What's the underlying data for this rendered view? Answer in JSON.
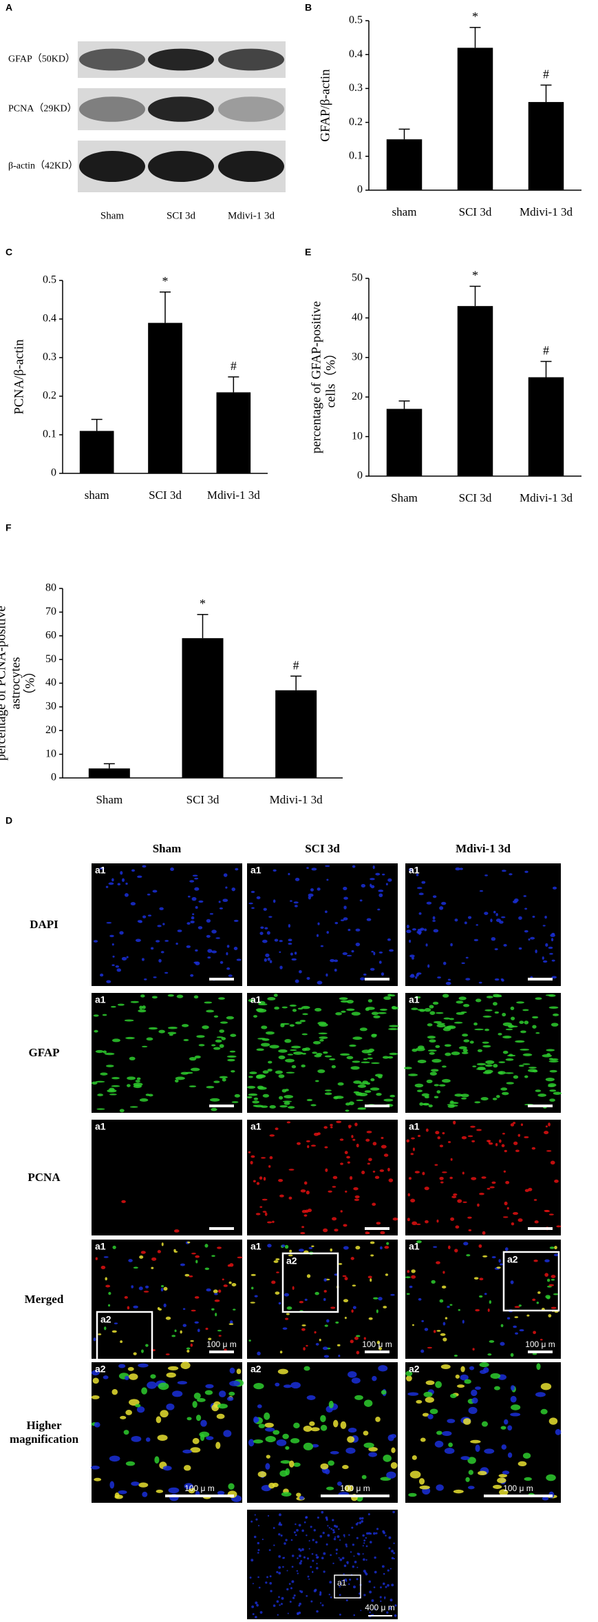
{
  "panel_labels": {
    "a": "A",
    "b": "B",
    "c": "C",
    "d": "D",
    "e": "E",
    "f": "F"
  },
  "blot": {
    "bands": [
      "GFAP（50KD）",
      "PCNA（29KD）",
      "β-actin（42KD）"
    ],
    "lanes": [
      "Sham",
      "SCI 3d",
      "Mdivi-1 3d"
    ]
  },
  "chart_data": [
    {
      "type": "bar",
      "ylabel": [
        "GFAP/β-actin"
      ],
      "categories": [
        "sham",
        "SCI 3d",
        "Mdivi-1 3d"
      ],
      "values": [
        0.15,
        0.42,
        0.26
      ],
      "errors": [
        0.03,
        0.06,
        0.05
      ],
      "annotations": [
        null,
        "*",
        "#"
      ],
      "color": "#000000",
      "ylim": [
        0,
        0.5
      ],
      "yticks": [
        0,
        0.1,
        0.2,
        0.3,
        0.4,
        0.5
      ]
    },
    {
      "type": "bar",
      "ylabel": [
        "PCNA/β-actin"
      ],
      "categories": [
        "sham",
        "SCI 3d",
        "Mdivi-1 3d"
      ],
      "values": [
        0.11,
        0.39,
        0.21
      ],
      "errors": [
        0.03,
        0.08,
        0.04
      ],
      "annotations": [
        null,
        "*",
        "#"
      ],
      "color": "#000000",
      "ylim": [
        0,
        0.5
      ],
      "yticks": [
        0,
        0.1,
        0.2,
        0.3,
        0.4,
        0.5
      ]
    },
    {
      "type": "bar",
      "ylabel": [
        "percentage of GFAP-positive",
        "cells（%）"
      ],
      "categories": [
        "Sham",
        "SCI 3d",
        "Mdivi-1 3d"
      ],
      "values": [
        17,
        43,
        25
      ],
      "errors": [
        2,
        5,
        4
      ],
      "annotations": [
        null,
        "*",
        "#"
      ],
      "color": "#000000",
      "ylim": [
        0,
        50
      ],
      "yticks": [
        0,
        10,
        20,
        30,
        40,
        50
      ]
    },
    {
      "type": "bar",
      "ylabel": [
        "percentage of PCNA-positive",
        "astrocytes",
        "（%）"
      ],
      "categories": [
        "Sham",
        "SCI 3d",
        "Mdivi-1 3d"
      ],
      "values": [
        4,
        59,
        37
      ],
      "errors": [
        2,
        10,
        6
      ],
      "annotations": [
        null,
        "*",
        "#"
      ],
      "color": "#000000",
      "ylim": [
        0,
        80
      ],
      "yticks": [
        0,
        10,
        20,
        30,
        40,
        50,
        60,
        70,
        80
      ]
    }
  ],
  "micrograph": {
    "columns": [
      "Sham",
      "SCI 3d",
      "Mdivi-1  3d"
    ],
    "rows": [
      "DAPI",
      "GFAP",
      "PCNA",
      "Merged",
      "Higher magnification"
    ],
    "region_tag": "a1",
    "zoom_tag": "a2",
    "scale_label": "100 μ m",
    "overview_scale_label": "400 μ m"
  }
}
